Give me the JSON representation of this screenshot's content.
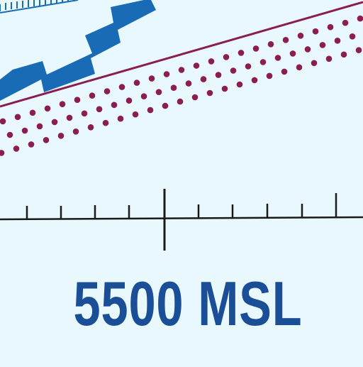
{
  "map": {
    "altitude_label": "5500 MSL",
    "colors": {
      "background": "#e9f8fc",
      "airspace_boundary": "#1a6bb5",
      "airway_line": "#8a1d52",
      "airway_dots": "#8a1d52",
      "scale_ticks": "#1a1a1a",
      "label_text": "#1a4e96"
    }
  }
}
